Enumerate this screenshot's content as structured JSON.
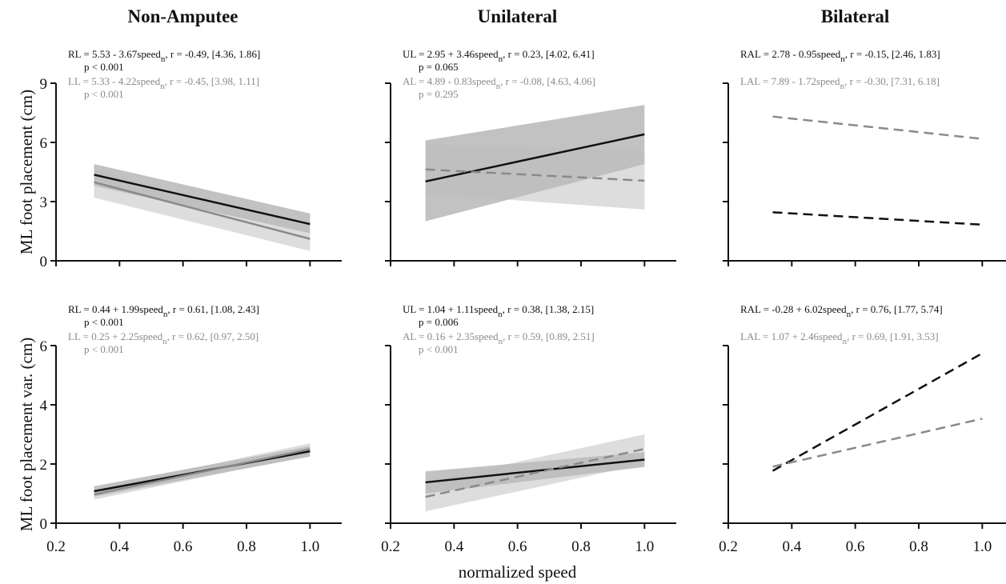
{
  "chart_data": [
    {
      "type": "line",
      "title": "Non-Amputee",
      "ylabel": "ML foot placement (cm)",
      "show_ytick_labels": true,
      "show_xtick_labels": false,
      "x": [
        0.32,
        1
      ],
      "xlim": [
        0.2,
        1.1
      ],
      "xticks": [
        0.2,
        0.4,
        0.6,
        0.8,
        {
          "value": 1,
          "label": "1.0"
        }
      ],
      "ylim": [
        0,
        9
      ],
      "yticks": [
        0,
        3,
        6,
        9
      ],
      "series": [
        {
          "name": "RL = 5.53 - 3.67speed",
          "subscript": "n",
          "stats": ",  r = -0.49, [4.36, 1.86]",
          "p": "p < 0.001",
          "color": "#111111",
          "dash": false,
          "values": [
            4.36,
            1.86
          ],
          "ci_lower": [
            3.8,
            1.4
          ],
          "ci_upper": [
            4.9,
            2.4
          ]
        },
        {
          "name": "LL = 5.33 - 4.22speed",
          "subscript": "n",
          "stats": ",  r = -0.45, [3.98, 1.11]",
          "p": "p < 0.001",
          "color": "#8a8a8a",
          "dash": false,
          "values": [
            3.98,
            1.11
          ],
          "ci_lower": [
            3.2,
            0.5
          ],
          "ci_upper": [
            4.6,
            1.7
          ]
        }
      ]
    },
    {
      "type": "line",
      "title": "Unilateral",
      "show_ytick_labels": false,
      "show_xtick_labels": false,
      "x": [
        0.31,
        1
      ],
      "xlim": [
        0.2,
        1.1
      ],
      "xticks": [
        0.2,
        0.4,
        0.6,
        0.8,
        {
          "value": 1,
          "label": "1.0"
        }
      ],
      "ylim": [
        0,
        9
      ],
      "yticks": [
        0,
        3,
        6,
        9
      ],
      "series": [
        {
          "name": "UL = 2.95 + 3.46speed",
          "subscript": "n",
          "stats": ",  r = 0.23, [4.02, 6.41]",
          "p": "p = 0.065",
          "color": "#111111",
          "dash": false,
          "values": [
            4.02,
            6.41
          ],
          "ci_lower": [
            2.0,
            4.9
          ],
          "ci_upper": [
            6.1,
            7.9
          ]
        },
        {
          "name": "AL = 4.89 - 0.83speed",
          "subscript": "n",
          "stats": ",  r = -0.08, [4.63, 4.06]",
          "p": "p = 0.295",
          "color": "#8a8a8a",
          "dash": true,
          "values": [
            4.63,
            4.06
          ],
          "ci_lower": [
            3.4,
            2.6
          ],
          "ci_upper": [
            5.9,
            5.6
          ]
        }
      ]
    },
    {
      "type": "line",
      "title": "Bilateral",
      "show_ytick_labels": false,
      "show_xtick_labels": false,
      "x": [
        0.34,
        1
      ],
      "xlim": [
        0.2,
        1.1
      ],
      "xticks": [
        0.2,
        0.4,
        0.6,
        0.8,
        {
          "value": 1,
          "label": "1.0"
        }
      ],
      "ylim": [
        0,
        9
      ],
      "yticks": [
        0,
        3,
        6,
        9
      ],
      "series": [
        {
          "name": "RAL = 2.78 - 0.95speed",
          "subscript": "n",
          "stats": ",  r = -0.15, [2.46, 1.83]",
          "color": "#111111",
          "dash": true,
          "values": [
            2.46,
            1.83
          ]
        },
        {
          "name": "LAL = 7.89 - 1.72speed",
          "subscript": "n",
          "stats": ",  r = -0.30, [7.31, 6.18]",
          "color": "#8a8a8a",
          "dash": true,
          "values": [
            7.31,
            6.18
          ]
        }
      ]
    },
    {
      "type": "line",
      "ylabel": "ML foot placement var. (cm)",
      "show_ytick_labels": true,
      "show_xtick_labels": true,
      "x": [
        0.32,
        1
      ],
      "xlim": [
        0.2,
        1.1
      ],
      "xticks": [
        0.2,
        0.4,
        0.6,
        0.8,
        {
          "value": 1,
          "label": "1.0"
        }
      ],
      "ylim": [
        0,
        6
      ],
      "yticks": [
        0,
        2,
        4,
        6
      ],
      "series": [
        {
          "name": "RL = 0.44 + 1.99speed",
          "subscript": "n",
          "stats": ",  r = 0.61, [1.08, 2.43]",
          "p": "p < 0.001",
          "color": "#111111",
          "dash": false,
          "values": [
            1.08,
            2.43
          ],
          "ci_lower": [
            0.9,
            2.25
          ],
          "ci_upper": [
            1.25,
            2.6
          ]
        },
        {
          "name": "LL = 0.25 + 2.25speed",
          "subscript": "n",
          "stats": ",  r = 0.62, [0.97, 2.50]",
          "p": "p < 0.001",
          "color": "#8a8a8a",
          "dash": false,
          "values": [
            0.97,
            2.5
          ],
          "ci_lower": [
            0.8,
            2.3
          ],
          "ci_upper": [
            1.15,
            2.7
          ]
        }
      ]
    },
    {
      "type": "line",
      "xlabel": "normalized speed",
      "show_ytick_labels": false,
      "show_xtick_labels": true,
      "x": [
        0.31,
        1
      ],
      "xlim": [
        0.2,
        1.1
      ],
      "xticks": [
        0.2,
        0.4,
        0.6,
        0.8,
        {
          "value": 1,
          "label": "1.0"
        }
      ],
      "ylim": [
        0,
        6
      ],
      "yticks": [
        0,
        2,
        4,
        6
      ],
      "series": [
        {
          "name": "UL = 1.04 + 1.11speed",
          "subscript": "n",
          "stats": ",  r = 0.38, [1.38, 2.15]",
          "p": "p = 0.006",
          "color": "#111111",
          "dash": false,
          "values": [
            1.38,
            2.15
          ],
          "ci_lower": [
            1.0,
            1.9
          ],
          "ci_upper": [
            1.75,
            2.4
          ]
        },
        {
          "name": "AL = 0.16 + 2.35speed",
          "subscript": "n",
          "stats": ",  r = 0.59, [0.89, 2.51]",
          "p": "p < 0.001",
          "color": "#8a8a8a",
          "dash": true,
          "values": [
            0.89,
            2.51
          ],
          "ci_lower": [
            0.4,
            2.0
          ],
          "ci_upper": [
            1.4,
            3.0
          ]
        }
      ]
    },
    {
      "type": "line",
      "show_ytick_labels": false,
      "show_xtick_labels": true,
      "x": [
        0.34,
        1
      ],
      "xlim": [
        0.2,
        1.1
      ],
      "xticks": [
        0.2,
        0.4,
        0.6,
        0.8,
        {
          "value": 1,
          "label": "1.0"
        }
      ],
      "ylim": [
        0,
        6
      ],
      "yticks": [
        0,
        2,
        4,
        6
      ],
      "series": [
        {
          "name": "RAL = -0.28 + 6.02speed",
          "subscript": "n",
          "stats": ",  r = 0.76, [1.77, 5.74]",
          "color": "#111111",
          "dash": true,
          "values": [
            1.77,
            5.74
          ]
        },
        {
          "name": "LAL = 1.07 + 2.46speed",
          "subscript": "n",
          "stats": ",  r = 0.69, [1.91, 3.53]",
          "color": "#8a8a8a",
          "dash": true,
          "values": [
            1.91,
            3.53
          ]
        }
      ]
    }
  ]
}
